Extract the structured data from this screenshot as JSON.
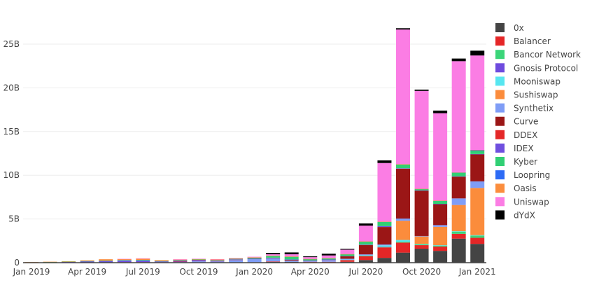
{
  "chart_data": {
    "type": "bar",
    "stacked": true,
    "title": "",
    "xlabel": "",
    "ylabel": "",
    "ylim": [
      0,
      28000000000
    ],
    "yticks": [
      0,
      5000000000,
      10000000000,
      15000000000,
      20000000000,
      25000000000
    ],
    "ytick_labels": [
      "0",
      "5B",
      "10B",
      "15B",
      "20B",
      "25B"
    ],
    "xtick_labels": [
      "Jan 2019",
      "Apr 2019",
      "Jul 2019",
      "Oct 2019",
      "Jan 2020",
      "Apr 2020",
      "Jul 2020",
      "Oct 2020",
      "Jan 2021"
    ],
    "xtick_indices": [
      0,
      3,
      6,
      9,
      12,
      15,
      18,
      21,
      24
    ],
    "grid": true,
    "legend_position": "right",
    "categories": [
      "2019-01",
      "2019-02",
      "2019-03",
      "2019-04",
      "2019-05",
      "2019-06",
      "2019-07",
      "2019-08",
      "2019-09",
      "2019-10",
      "2019-11",
      "2019-12",
      "2020-01",
      "2020-02",
      "2020-03",
      "2020-04",
      "2020-05",
      "2020-06",
      "2020-07",
      "2020-08",
      "2020-09",
      "2020-10",
      "2020-11",
      "2020-12",
      "2021-01"
    ],
    "unit": "billions",
    "series": [
      {
        "name": "0x",
        "color": "#444444",
        "values": [
          0,
          0,
          0.02,
          0.03,
          0.03,
          0.05,
          0.05,
          0.04,
          0.03,
          0.03,
          0.04,
          0.04,
          0.05,
          0.1,
          0.1,
          0.05,
          0.05,
          0.1,
          0.3,
          0.55,
          1.15,
          1.6,
          1.35,
          2.75,
          2.15
        ]
      },
      {
        "name": "Balancer",
        "color": "#e52627",
        "values": [
          0,
          0,
          0,
          0,
          0,
          0,
          0,
          0,
          0,
          0,
          0,
          0,
          0,
          0.05,
          0,
          0.05,
          0.05,
          0.2,
          0.45,
          1.2,
          1.15,
          0.4,
          0.5,
          0.55,
          0.7
        ]
      },
      {
        "name": "Bancor Network",
        "color": "#3bd579",
        "values": [
          0,
          0,
          0,
          0,
          0,
          0,
          0,
          0,
          0,
          0,
          0,
          0,
          0,
          0,
          0,
          0,
          0,
          0,
          0.05,
          0.05,
          0.1,
          0.1,
          0.1,
          0.25,
          0.25
        ]
      },
      {
        "name": "Gnosis Protocol",
        "color": "#6e4bde",
        "values": [
          0,
          0,
          0,
          0,
          0,
          0,
          0,
          0,
          0,
          0,
          0,
          0,
          0,
          0,
          0,
          0,
          0,
          0,
          0,
          0.03,
          0,
          0,
          0,
          0,
          0
        ]
      },
      {
        "name": "Mooniswap",
        "color": "#57e6f0",
        "values": [
          0,
          0,
          0,
          0,
          0,
          0,
          0,
          0,
          0,
          0,
          0,
          0,
          0,
          0,
          0,
          0,
          0,
          0.05,
          0.05,
          0.15,
          0.2,
          0.05,
          0.05,
          0.05,
          0.05
        ]
      },
      {
        "name": "Sushiswap",
        "color": "#fb8c3c",
        "values": [
          0,
          0,
          0,
          0,
          0,
          0,
          0,
          0,
          0,
          0,
          0,
          0,
          0,
          0,
          0,
          0,
          0,
          0,
          0,
          0,
          2.2,
          0.85,
          2.1,
          3.0,
          5.4
        ]
      },
      {
        "name": "Synthetix",
        "color": "#7f9df6",
        "values": [
          0,
          0,
          0,
          0,
          0,
          0,
          0,
          0,
          0.08,
          0.2,
          0.15,
          0.3,
          0.4,
          0.35,
          0.15,
          0.1,
          0.2,
          0.1,
          0.1,
          0.1,
          0.25,
          0.05,
          0.2,
          0.75,
          0.75
        ]
      },
      {
        "name": "Curve",
        "color": "#9b1616",
        "values": [
          0,
          0,
          0,
          0,
          0,
          0,
          0,
          0,
          0,
          0,
          0,
          0,
          0,
          0.05,
          0.1,
          0.05,
          0.05,
          0.3,
          1.07,
          2.0,
          5.7,
          5.2,
          2.4,
          2.5,
          3.1
        ]
      },
      {
        "name": "DDEX",
        "color": "#e42828",
        "values": [
          0.01,
          0.01,
          0.01,
          0.01,
          0.01,
          0.01,
          0.01,
          0.01,
          0.01,
          0.01,
          0.01,
          0.01,
          0.01,
          0,
          0,
          0,
          0,
          0,
          0,
          0,
          0,
          0,
          0,
          0,
          0
        ]
      },
      {
        "name": "IDEX",
        "color": "#6f4fdf",
        "values": [
          0.04,
          0.06,
          0.08,
          0.12,
          0.15,
          0.2,
          0.2,
          0.1,
          0.12,
          0.08,
          0.05,
          0.03,
          0.02,
          0.02,
          0.02,
          0.01,
          0.01,
          0.02,
          0.05,
          0.1,
          0.05,
          0.03,
          0.03,
          0.03,
          0.03
        ]
      },
      {
        "name": "Kyber",
        "color": "#31cf74",
        "values": [
          0.01,
          0.02,
          0.02,
          0.03,
          0.05,
          0.05,
          0.06,
          0.04,
          0.04,
          0.04,
          0.05,
          0.06,
          0.1,
          0.2,
          0.3,
          0.15,
          0.15,
          0.2,
          0.35,
          0.5,
          0.45,
          0.15,
          0.35,
          0.4,
          0.35
        ]
      },
      {
        "name": "Loopring",
        "color": "#2d6bf5",
        "values": [
          0,
          0,
          0,
          0,
          0,
          0,
          0,
          0,
          0,
          0,
          0,
          0,
          0,
          0,
          0,
          0,
          0,
          0,
          0,
          0,
          0,
          0,
          0,
          0.05,
          0.1
        ]
      },
      {
        "name": "Oasis",
        "color": "#fb8d3d",
        "values": [
          0.01,
          0.02,
          0.03,
          0.08,
          0.15,
          0.1,
          0.15,
          0.1,
          0.08,
          0.06,
          0.06,
          0.05,
          0.04,
          0.05,
          0.05,
          0.02,
          0.02,
          0.02,
          0.02,
          0.02,
          0.02,
          0.02,
          0.02,
          0.02,
          0.02
        ]
      },
      {
        "name": "Uniswap",
        "color": "#fb7de4",
        "values": [
          0,
          0,
          0,
          0,
          0,
          0.03,
          0.03,
          0,
          0.03,
          0.04,
          0.05,
          0.06,
          0.06,
          0.15,
          0.25,
          0.2,
          0.3,
          0.5,
          1.8,
          6.7,
          15.4,
          11.2,
          10.0,
          12.7,
          10.8
        ]
      },
      {
        "name": "dYdX",
        "color": "#000000",
        "values": [
          0,
          0,
          0,
          0,
          0,
          0,
          0,
          0,
          0,
          0,
          0,
          0,
          0,
          0.15,
          0.2,
          0.1,
          0.2,
          0.1,
          0.25,
          0.3,
          0.15,
          0.15,
          0.3,
          0.3,
          0.55
        ]
      }
    ]
  }
}
